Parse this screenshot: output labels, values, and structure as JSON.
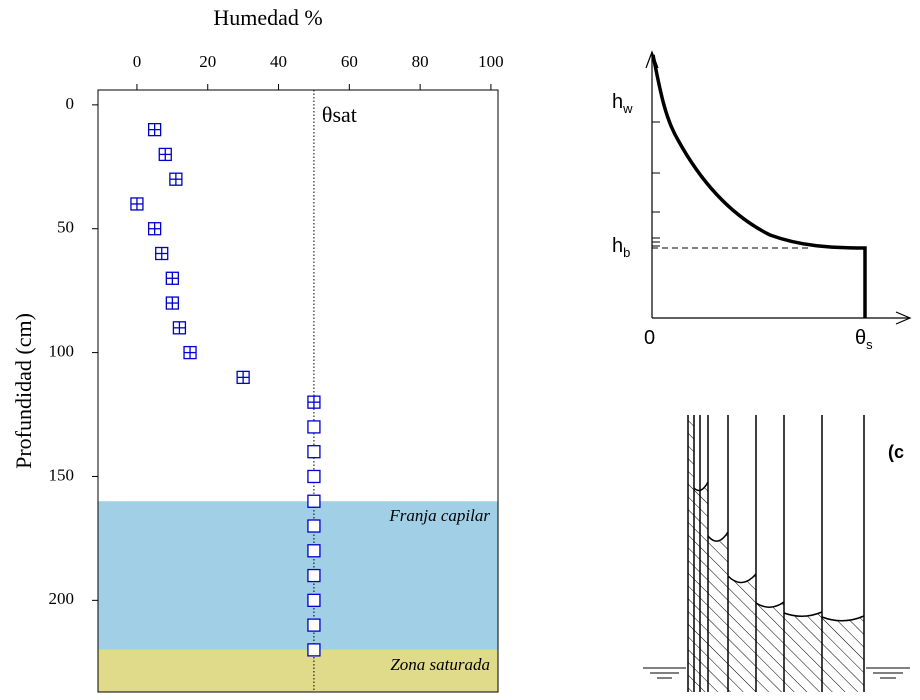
{
  "chart_data": {
    "type": "scatter",
    "xlabel": "Humedad %",
    "ylabel": "Profundidad (cm)",
    "xlim": [
      -11,
      102
    ],
    "xticks": [
      0,
      20,
      40,
      60,
      80,
      100
    ],
    "ylim": [
      -6,
      237
    ],
    "yticks": [
      0,
      50,
      100,
      150,
      200
    ],
    "y_inverted": true,
    "series": [
      {
        "color": "#0000cc",
        "marker": "crossed-square",
        "x": [
          5,
          8,
          11,
          0,
          5,
          7,
          10,
          10,
          12,
          15,
          30,
          50
        ],
        "y": [
          10,
          20,
          30,
          40,
          50,
          60,
          70,
          80,
          90,
          100,
          110,
          120
        ]
      },
      {
        "color": "#0000cc",
        "marker": "square",
        "x": [
          50,
          50,
          50,
          50,
          50,
          50,
          50,
          50,
          50,
          50
        ],
        "y": [
          130,
          140,
          150,
          160,
          170,
          180,
          190,
          200,
          210,
          220
        ]
      }
    ],
    "reference_line": {
      "x": 50,
      "label": "θsat"
    },
    "regions": [
      {
        "label": "Franja capilar",
        "from": 160,
        "to": 220,
        "color": "#a0cfe6"
      },
      {
        "label": "Zona saturada",
        "from": 220,
        "to": 237,
        "color": "#dfdb8a"
      }
    ]
  },
  "curve_diagram": {
    "hw": {
      "main": "h",
      "sub": "w"
    },
    "hb": {
      "main": "h",
      "sub": "b"
    },
    "origin": "0",
    "theta_s": {
      "main": "θ",
      "sub": "s"
    }
  },
  "tube_diagram": {
    "label": "(c"
  }
}
